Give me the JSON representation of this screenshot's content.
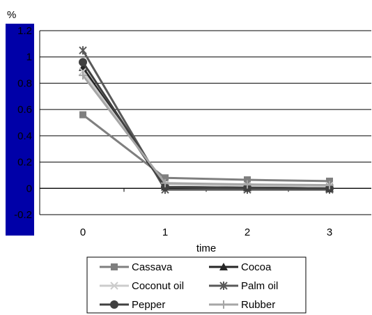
{
  "chart_data": {
    "type": "line",
    "xlabel": "time",
    "ylabel": "%",
    "x": [
      0,
      1,
      2,
      3
    ],
    "x_ticks": [
      "0",
      "1",
      "2",
      "3"
    ],
    "y_ticks": [
      "1.2",
      "1",
      "0.8",
      "0.6",
      "0.4",
      "0.2",
      "0",
      "-0.2"
    ],
    "ylim": [
      -0.2,
      1.2
    ],
    "grid": "horizontal",
    "legend_position": "bottom",
    "series": [
      {
        "name": "Cassava",
        "values": [
          0.56,
          0.08,
          0.065,
          0.055
        ],
        "color": "#7f7f7f",
        "marker": "square"
      },
      {
        "name": "Cocoa",
        "values": [
          0.92,
          0.01,
          0.005,
          0.0
        ],
        "color": "#262626",
        "marker": "triangle"
      },
      {
        "name": "Coconut oil",
        "values": [
          0.89,
          0.03,
          0.02,
          0.02
        ],
        "color": "#cccccc",
        "marker": "x"
      },
      {
        "name": "Palm oil",
        "values": [
          1.05,
          -0.01,
          -0.01,
          -0.01
        ],
        "color": "#595959",
        "marker": "asterisk"
      },
      {
        "name": "Pepper",
        "values": [
          0.96,
          0.01,
          0.005,
          0.0
        ],
        "color": "#404040",
        "marker": "circle"
      },
      {
        "name": "Rubber",
        "values": [
          0.86,
          0.04,
          0.03,
          0.025
        ],
        "color": "#a6a6a6",
        "marker": "plus"
      }
    ]
  },
  "colors": {
    "y_band": "#0000a8",
    "grid": "#000000"
  }
}
